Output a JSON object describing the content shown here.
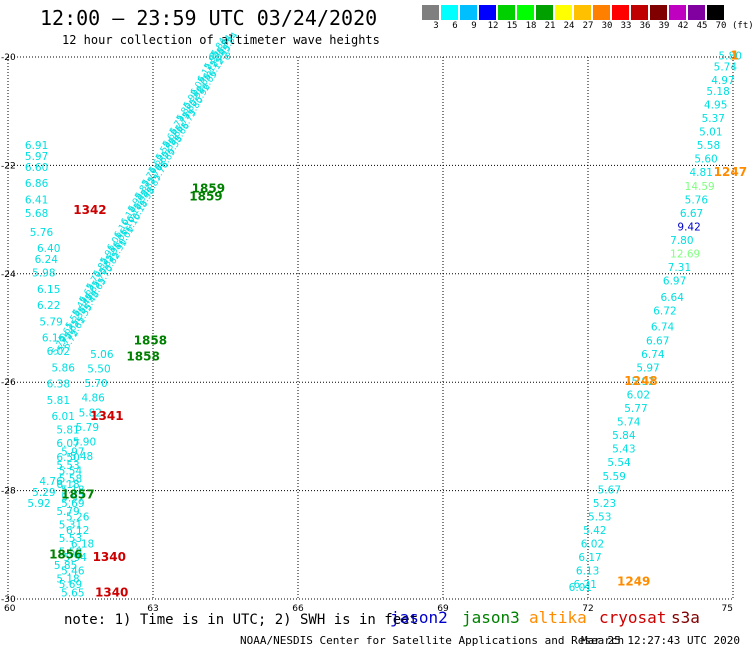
{
  "title": "12:00 — 23:59 UTC 03/24/2020",
  "subtitle": "12 hour collection of altimeter wave heights",
  "colorbar": {
    "labels": [
      "3",
      "6",
      "9",
      "12",
      "15",
      "18",
      "21",
      "24",
      "27",
      "30",
      "33",
      "36",
      "39",
      "42",
      "45",
      "70"
    ],
    "unit": "(ft)",
    "colors": [
      "#7f7f7f",
      "#00ffff",
      "#00bfff",
      "#0000ff",
      "#00d000",
      "#00ff00",
      "#00a000",
      "#ffff00",
      "#ffc000",
      "#ff8000",
      "#ff0000",
      "#c00000",
      "#800000",
      "#c000c0",
      "#8000a0",
      "#000000"
    ]
  },
  "note": "note:  1) Time is in UTC; 2) SWH is in feet",
  "legend": [
    {
      "name": "jason2",
      "color": "#0000cc"
    },
    {
      "name": "jason3",
      "color": "#008000"
    },
    {
      "name": "altika",
      "color": "#ff8c00"
    },
    {
      "name": "cryosat",
      "color": "#cc0000"
    },
    {
      "name": "s3a",
      "color": "#800000"
    }
  ],
  "footer": "NOAA/NESDIS Center for Satellite Applications and Research",
  "timestamp": "Mar 25 12:27:43 UTC 2020",
  "chart_data": {
    "type": "scatter",
    "xlim": [
      60,
      75
    ],
    "ylim": [
      -30,
      -20
    ],
    "xticks": [
      "60",
      "63",
      "66",
      "69",
      "72",
      "75"
    ],
    "yticks": [
      "-20",
      "-22",
      "-24",
      "-26",
      "-28",
      "-30"
    ],
    "grid": true,
    "colors": {
      "swh_low": "#00e0e0",
      "swh_mid": "#80ff80",
      "swh_blue": "#0000cc",
      "jason3": "#008000",
      "altika": "#ff8c00",
      "cryosat": "#cc0000"
    },
    "series": [
      {
        "track": "left_column",
        "x": [
          60.35,
          60.35,
          60.35,
          60.35,
          60.35,
          60.35,
          60.45,
          60.6,
          60.55,
          60.5,
          60.6,
          60.6,
          60.65,
          60.7,
          60.8,
          60.9,
          60.8,
          60.8,
          60.9,
          61.0,
          61.0,
          61.0,
          61.05,
          61.0,
          61.1,
          61.0,
          61.05,
          61.05,
          61.05,
          60.95,
          61.0,
          60.65,
          60.5,
          60.4
        ],
        "y": [
          -21.7,
          -21.9,
          -22.1,
          -22.4,
          -22.7,
          -22.95,
          -23.3,
          -23.6,
          -23.8,
          -24.05,
          -24.35,
          -24.65,
          -24.95,
          -25.25,
          -25.5,
          -25.8,
          -26.1,
          -26.4,
          -26.7,
          -26.95,
          -27.2,
          -27.45,
          -27.7,
          -27.95,
          -28.2,
          -28.45,
          -28.7,
          -28.95,
          -29.2,
          -29.45,
          -29.7,
          -27.9,
          -28.1,
          -28.3
        ],
        "labels": [
          "6.91",
          "5.97",
          "6.60",
          "6.86",
          "6.41",
          "5.68",
          "5.76",
          "6.40",
          "6.24",
          "5.98",
          "6.15",
          "6.22",
          "5.79",
          "6.16",
          "6.02",
          "5.86",
          "6.38",
          "5.81",
          "6.01",
          "5.81",
          "6.07",
          "6.50",
          "5.54",
          "6.18",
          "5.57",
          "5.79",
          "5.31",
          "5.53",
          "5.58",
          "5.85",
          "5.18",
          "4.76",
          "5.29",
          "5.92"
        ]
      },
      {
        "track": "mid_column",
        "x": [
          61.1,
          61.1,
          61.2,
          61.2,
          61.3,
          61.15,
          61.1,
          61.05,
          61.1,
          61.05,
          61.0,
          61.1
        ],
        "y": [
          -28.05,
          -28.3,
          -28.55,
          -28.8,
          -29.05,
          -29.3,
          -29.55,
          -29.8,
          -29.95,
          -27.85,
          -27.6,
          -27.35
        ],
        "labels": [
          "5.18",
          "5.69",
          "5.26",
          "6.12",
          "6.18",
          "5.94",
          "5.46",
          "5.69",
          "5.65",
          "5.58",
          "5.53",
          "5.97"
        ]
      },
      {
        "track": "right_column",
        "x": [
          74.7,
          74.6,
          74.55,
          74.45,
          74.4,
          74.35,
          74.3,
          74.25,
          74.2,
          74.1,
          74.0,
          74.0,
          73.9,
          73.85,
          73.7,
          73.7,
          73.65,
          73.55,
          73.5,
          73.35,
          73.3,
          73.2,
          73.1,
          73.0,
          72.9,
          72.8,
          72.75,
          72.6,
          72.5,
          72.5,
          72.4,
          72.3,
          72.2,
          72.1,
          72.0,
          71.9,
          71.85,
          71.8,
          71.75,
          71.7
        ],
        "y": [
          -20.05,
          -20.25,
          -20.5,
          -20.7,
          -20.95,
          -21.2,
          -21.45,
          -21.7,
          -21.95,
          -22.2,
          -22.45,
          -22.7,
          -22.95,
          -23.2,
          -23.45,
          -23.7,
          -23.95,
          -24.2,
          -24.5,
          -24.75,
          -25.05,
          -25.3,
          -25.55,
          -25.8,
          -26.05,
          -26.3,
          -26.55,
          -26.8,
          -27.05,
          -27.3,
          -27.55,
          -27.8,
          -28.05,
          -28.3,
          -28.55,
          -28.8,
          -29.05,
          -29.3,
          -29.55,
          -29.8
        ],
        "labels": [
          "5.80",
          "5.74",
          "4.97",
          "5.18",
          "4.95",
          "5.37",
          "5.01",
          "5.58",
          "5.60",
          "4.81",
          "14.59",
          "5.76",
          "6.67",
          "9.42",
          "7.80",
          "12.69",
          "7.31",
          "6.97",
          "6.64",
          "6.72",
          "6.74",
          "6.67",
          "6.74",
          "5.97",
          "5.92",
          "6.02",
          "5.77",
          "5.74",
          "5.84",
          "5.43",
          "5.54",
          "5.59",
          "5.67",
          "5.23",
          "5.53",
          "5.42",
          "6.02",
          "6.17",
          "6.13",
          "6.21"
        ]
      },
      {
        "track": "right_extra",
        "x": [
          71.6
        ],
        "y": [
          -29.85
        ],
        "labels": [
          "6.01"
        ]
      }
    ],
    "pass_times": [
      {
        "x": 61.35,
        "y": -22.9,
        "label": "1342",
        "sat": "cryosat"
      },
      {
        "x": 61.7,
        "y": -26.7,
        "label": "1341",
        "sat": "cryosat"
      },
      {
        "x": 61.75,
        "y": -29.3,
        "label": "1340",
        "sat": "cryosat"
      },
      {
        "x": 61.8,
        "y": -29.95,
        "label": "1340",
        "sat": "cryosat"
      },
      {
        "x": 63.8,
        "y": -22.5,
        "label": "1859",
        "sat": "jason3"
      },
      {
        "x": 63.75,
        "y": -22.65,
        "label": "1859",
        "sat": "jason3"
      },
      {
        "x": 62.6,
        "y": -25.3,
        "label": "1858",
        "sat": "jason3"
      },
      {
        "x": 62.45,
        "y": -25.6,
        "label": "1858",
        "sat": "jason3"
      },
      {
        "x": 61.1,
        "y": -28.15,
        "label": "1857",
        "sat": "jason3"
      },
      {
        "x": 60.85,
        "y": -29.25,
        "label": "1856",
        "sat": "jason3"
      },
      {
        "x": 74.6,
        "y": -22.2,
        "label": "1247",
        "sat": "altika"
      },
      {
        "x": 72.75,
        "y": -26.05,
        "label": "1248",
        "sat": "altika"
      },
      {
        "x": 72.6,
        "y": -29.75,
        "label": "1249",
        "sat": "altika"
      },
      {
        "x": 74.95,
        "y": -20.05,
        "label": "1",
        "sat": "altika"
      }
    ],
    "dense_track": {
      "start": [
        61.0,
        -25.5
      ],
      "end": [
        64.3,
        -20.0
      ],
      "top_label": "6.78",
      "labels": [
        "5.72",
        "5.61",
        "5.55",
        "5.48",
        "5.63",
        "5.70",
        "5.82",
        "5.91",
        "6.01",
        "6.10",
        "6.18",
        "5.98",
        "5.87",
        "5.76",
        "5.69",
        "5.58",
        "5.66",
        "5.73",
        "5.80",
        "5.92",
        "6.05",
        "6.12",
        "5.95",
        "5.84"
      ]
    },
    "lower_track_labels": [
      "5.06",
      "5.50",
      "5.70",
      "4.86",
      "5.82",
      "5.79",
      "5.90",
      "5.48"
    ]
  }
}
